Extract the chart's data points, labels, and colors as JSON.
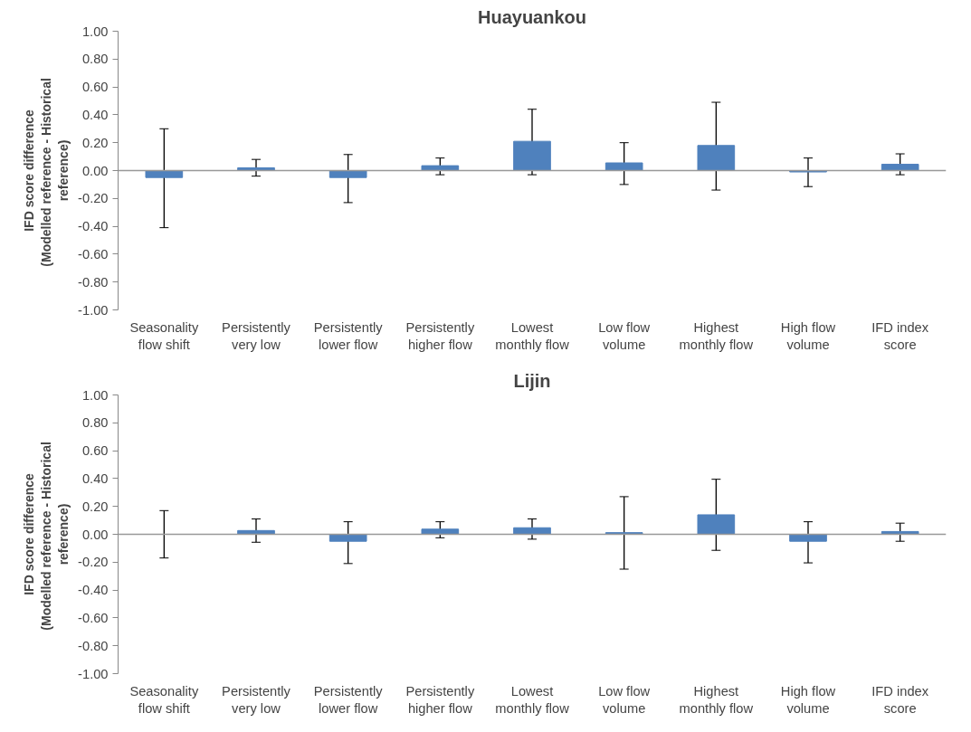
{
  "chart_data": [
    {
      "type": "bar",
      "title": "Huayuankou",
      "ylabel": "IFD score difference\n(Modelled reference  - Historical\nreference)",
      "categories": [
        "Seasonality flow shift",
        "Persistently very low",
        "Persistently lower flow",
        "Persistently higher flow",
        "Lowest monthly flow",
        "Low flow volume",
        "Highest monthly flow",
        "High flow volume",
        "IFD index score"
      ],
      "values": [
        -0.05,
        0.02,
        -0.05,
        0.035,
        0.21,
        0.055,
        0.18,
        -0.01,
        0.045
      ],
      "errors": [
        [
          -0.41,
          0.3
        ],
        [
          -0.04,
          0.08
        ],
        [
          -0.23,
          0.115
        ],
        [
          -0.03,
          0.09
        ],
        [
          -0.03,
          0.44
        ],
        [
          -0.1,
          0.2
        ],
        [
          -0.14,
          0.49
        ],
        [
          -0.115,
          0.09
        ],
        [
          -0.03,
          0.12
        ]
      ],
      "color": "#4f81bd",
      "ylim": [
        -1,
        1
      ],
      "yticks": [
        {
          "value": -1,
          "label": "-1.00"
        },
        {
          "value": -0.8,
          "label": "-0.80"
        },
        {
          "value": -0.6,
          "label": "-0.60"
        },
        {
          "value": -0.4,
          "label": "-0.40"
        },
        {
          "value": -0.2,
          "label": "-0.20"
        },
        {
          "value": 0,
          "label": "0.00"
        },
        {
          "value": 0.2,
          "label": "0.20"
        },
        {
          "value": 0.4,
          "label": "0.40"
        },
        {
          "value": 0.6,
          "label": "0.60"
        },
        {
          "value": 0.8,
          "label": "0.80"
        },
        {
          "value": 1,
          "label": "1.00"
        }
      ]
    },
    {
      "type": "bar",
      "title": "Lijin",
      "ylabel": "IFD score difference\n(Modelled reference  - Historical\nreference)",
      "categories": [
        "Seasonality flow shift",
        "Persistently very low",
        "Persistently lower flow",
        "Persistently higher flow",
        "Lowest monthly flow",
        "Low flow volume",
        "Highest monthly flow",
        "High flow volume",
        "IFD index score"
      ],
      "values": [
        0.0,
        0.027,
        -0.05,
        0.037,
        0.047,
        0.012,
        0.14,
        -0.05,
        0.02
      ],
      "errors": [
        [
          -0.17,
          0.17
        ],
        [
          -0.057,
          0.11
        ],
        [
          -0.21,
          0.09
        ],
        [
          -0.025,
          0.09
        ],
        [
          -0.035,
          0.11
        ],
        [
          -0.25,
          0.27
        ],
        [
          -0.115,
          0.395
        ],
        [
          -0.205,
          0.09
        ],
        [
          -0.05,
          0.08
        ]
      ],
      "color": "#4f81bd",
      "ylim": [
        -1,
        1
      ],
      "yticks": [
        {
          "value": -1,
          "label": "-1.00"
        },
        {
          "value": -0.8,
          "label": "-0.80"
        },
        {
          "value": -0.6,
          "label": "-0.60"
        },
        {
          "value": -0.4,
          "label": "-0.40"
        },
        {
          "value": -0.2,
          "label": "-0.20"
        },
        {
          "value": 0,
          "label": "0.00"
        },
        {
          "value": 0.2,
          "label": "0.20"
        },
        {
          "value": 0.4,
          "label": "0.40"
        },
        {
          "value": 0.6,
          "label": "0.60"
        },
        {
          "value": 0.8,
          "label": "0.80"
        },
        {
          "value": 1,
          "label": "1.00"
        }
      ]
    }
  ]
}
